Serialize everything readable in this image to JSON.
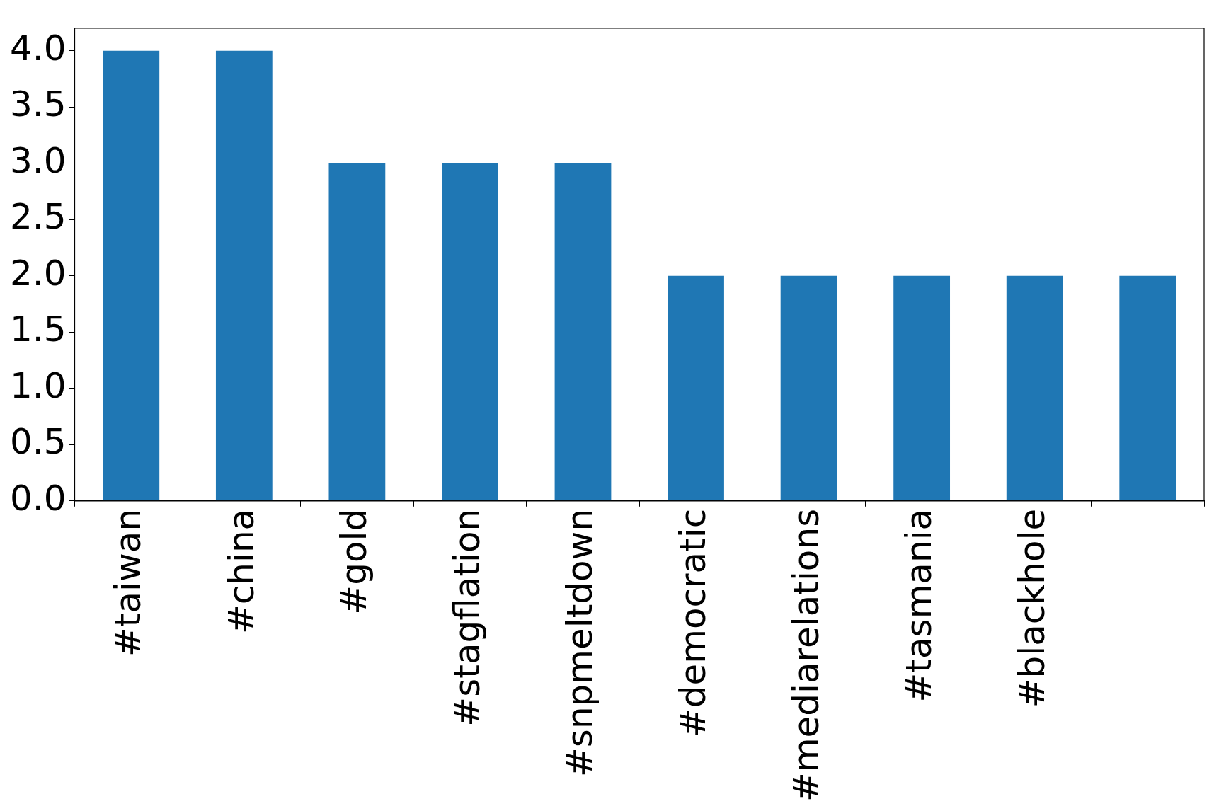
{
  "chart_data": {
    "type": "bar",
    "categories": [
      "#taiwan",
      "#china",
      "#gold",
      "#stagflation",
      "#snpmeltdown",
      "#democratic",
      "#mediarelations",
      "#tasmania",
      "#blackhole",
      null
    ],
    "values": [
      4,
      4,
      3,
      3,
      3,
      2,
      2,
      2,
      2,
      2
    ],
    "color": "#1f77b4",
    "ylim": [
      0,
      4.2
    ],
    "yticks": [
      {
        "value": 0,
        "label": "0.0"
      },
      {
        "value": 0.5,
        "label": "0.5"
      },
      {
        "value": 1,
        "label": "1.0"
      },
      {
        "value": 1.5,
        "label": "1.5"
      },
      {
        "value": 2,
        "label": "2.0"
      },
      {
        "value": 2.5,
        "label": "2.5"
      },
      {
        "value": 3,
        "label": "3.0"
      },
      {
        "value": 3.5,
        "label": "3.5"
      },
      {
        "value": 4,
        "label": "4.0"
      }
    ],
    "grid": false,
    "legend": false
  }
}
